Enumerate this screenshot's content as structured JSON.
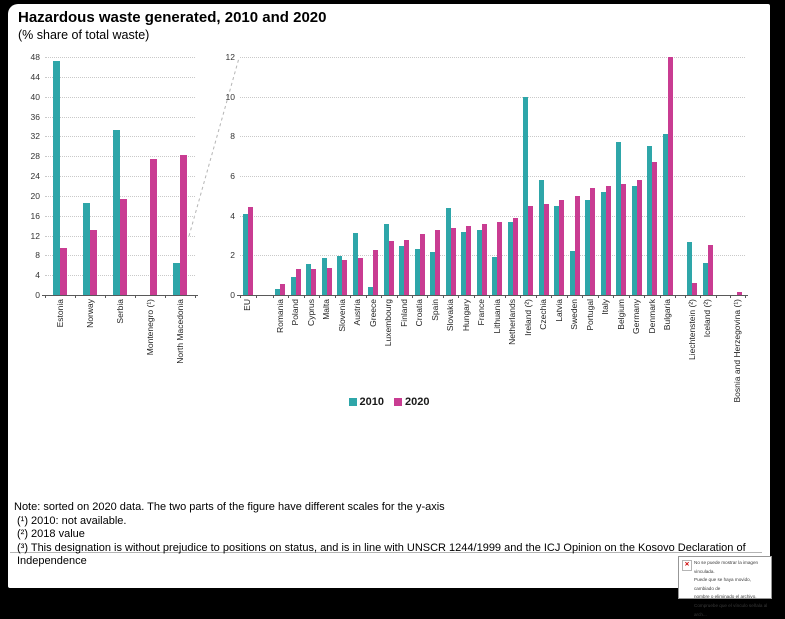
{
  "header": {
    "title": "Hazardous waste generated, 2010 and 2020",
    "subtitle": "(% share of total waste)"
  },
  "chart_data": {
    "type": "bar",
    "title": "Hazardous waste generated, 2010 and 2020",
    "subtitle": "(% share of total waste)",
    "legend": [
      "2010",
      "2020"
    ],
    "legend_position": "bottom-center",
    "grid": "horizontal-dotted",
    "colors": {
      "2010": "#2EA6A9",
      "2020": "#C93C92"
    },
    "panels": [
      {
        "name": "left",
        "ylim": [
          0,
          48
        ],
        "ytick_step": 4,
        "categories": [
          "Estonia",
          "Norway",
          "Serbia",
          "Montenegro (¹)",
          "North Macedonia"
        ],
        "series": [
          {
            "name": "2010",
            "values": [
              47.2,
              18.6,
              33.2,
              null,
              6.4
            ]
          },
          {
            "name": "2020",
            "values": [
              9.5,
              13.2,
              19.3,
              27.5,
              28.2
            ]
          }
        ],
        "gaps_after": {}
      },
      {
        "name": "right",
        "ylim": [
          0,
          12
        ],
        "ytick_step": 2,
        "categories": [
          "EU",
          "Romania",
          "Poland",
          "Cyprus",
          "Malta",
          "Slovenia",
          "Austria",
          "Greece",
          "Luxembourg",
          "Finland",
          "Croatia",
          "Spain",
          "Slovakia",
          "Hungary",
          "France",
          "Lithuania",
          "Netherlands",
          "Ireland (²)",
          "Czechia",
          "Latvia",
          "Sweden",
          "Portugal",
          "Italy",
          "Belgium",
          "Germany",
          "Denmark",
          "Bulgaria",
          "Liechtenstein (²)",
          "Iceland (²)",
          "Bosnia and Herzegovina (¹)"
        ],
        "series": [
          {
            "name": "2010",
            "values": [
              4.1,
              0.3,
              0.9,
              1.55,
              1.85,
              1.95,
              3.15,
              0.4,
              3.6,
              2.45,
              2.3,
              2.15,
              4.4,
              3.2,
              3.3,
              1.9,
              3.7,
              10.0,
              5.8,
              4.5,
              2.2,
              4.8,
              5.2,
              7.7,
              5.5,
              7.5,
              8.1,
              2.65,
              1.6,
              null
            ]
          },
          {
            "name": "2020",
            "values": [
              4.45,
              0.55,
              1.3,
              1.3,
              1.35,
              1.75,
              1.85,
              2.25,
              2.7,
              2.8,
              3.1,
              3.3,
              3.4,
              3.5,
              3.6,
              3.7,
              3.9,
              4.5,
              4.6,
              4.8,
              5.0,
              5.4,
              5.5,
              5.6,
              5.8,
              6.7,
              12.0,
              0.6,
              2.5,
              0.15
            ]
          }
        ],
        "gaps_after": {
          "0": 1.1,
          "26": 0.6,
          "28": 0.9
        }
      }
    ],
    "note": "sorted on 2020 data; the two parts of the figure have different scales for the y-axis"
  },
  "notes": {
    "lines": [
      "Note: sorted on 2020 data. The two parts of the figure have different scales for the y-axis",
      "(¹) 2010: not available.",
      "(²) 2018 value",
      "(³) This designation is without prejudice to positions on status, and is in line with UNSCR 1244/1999 and the ICJ Opinion on the Kosovo Declaration of Independence"
    ]
  },
  "broken_image_box": {
    "lines": [
      "No se puede mostrar la imagen vinculada.",
      "Puede que se haya movido, cambiado de",
      "nombre o eliminado el archivo.",
      "Compruebe que el vínculo señala al arch..."
    ],
    "icon": "red-x-icon"
  }
}
